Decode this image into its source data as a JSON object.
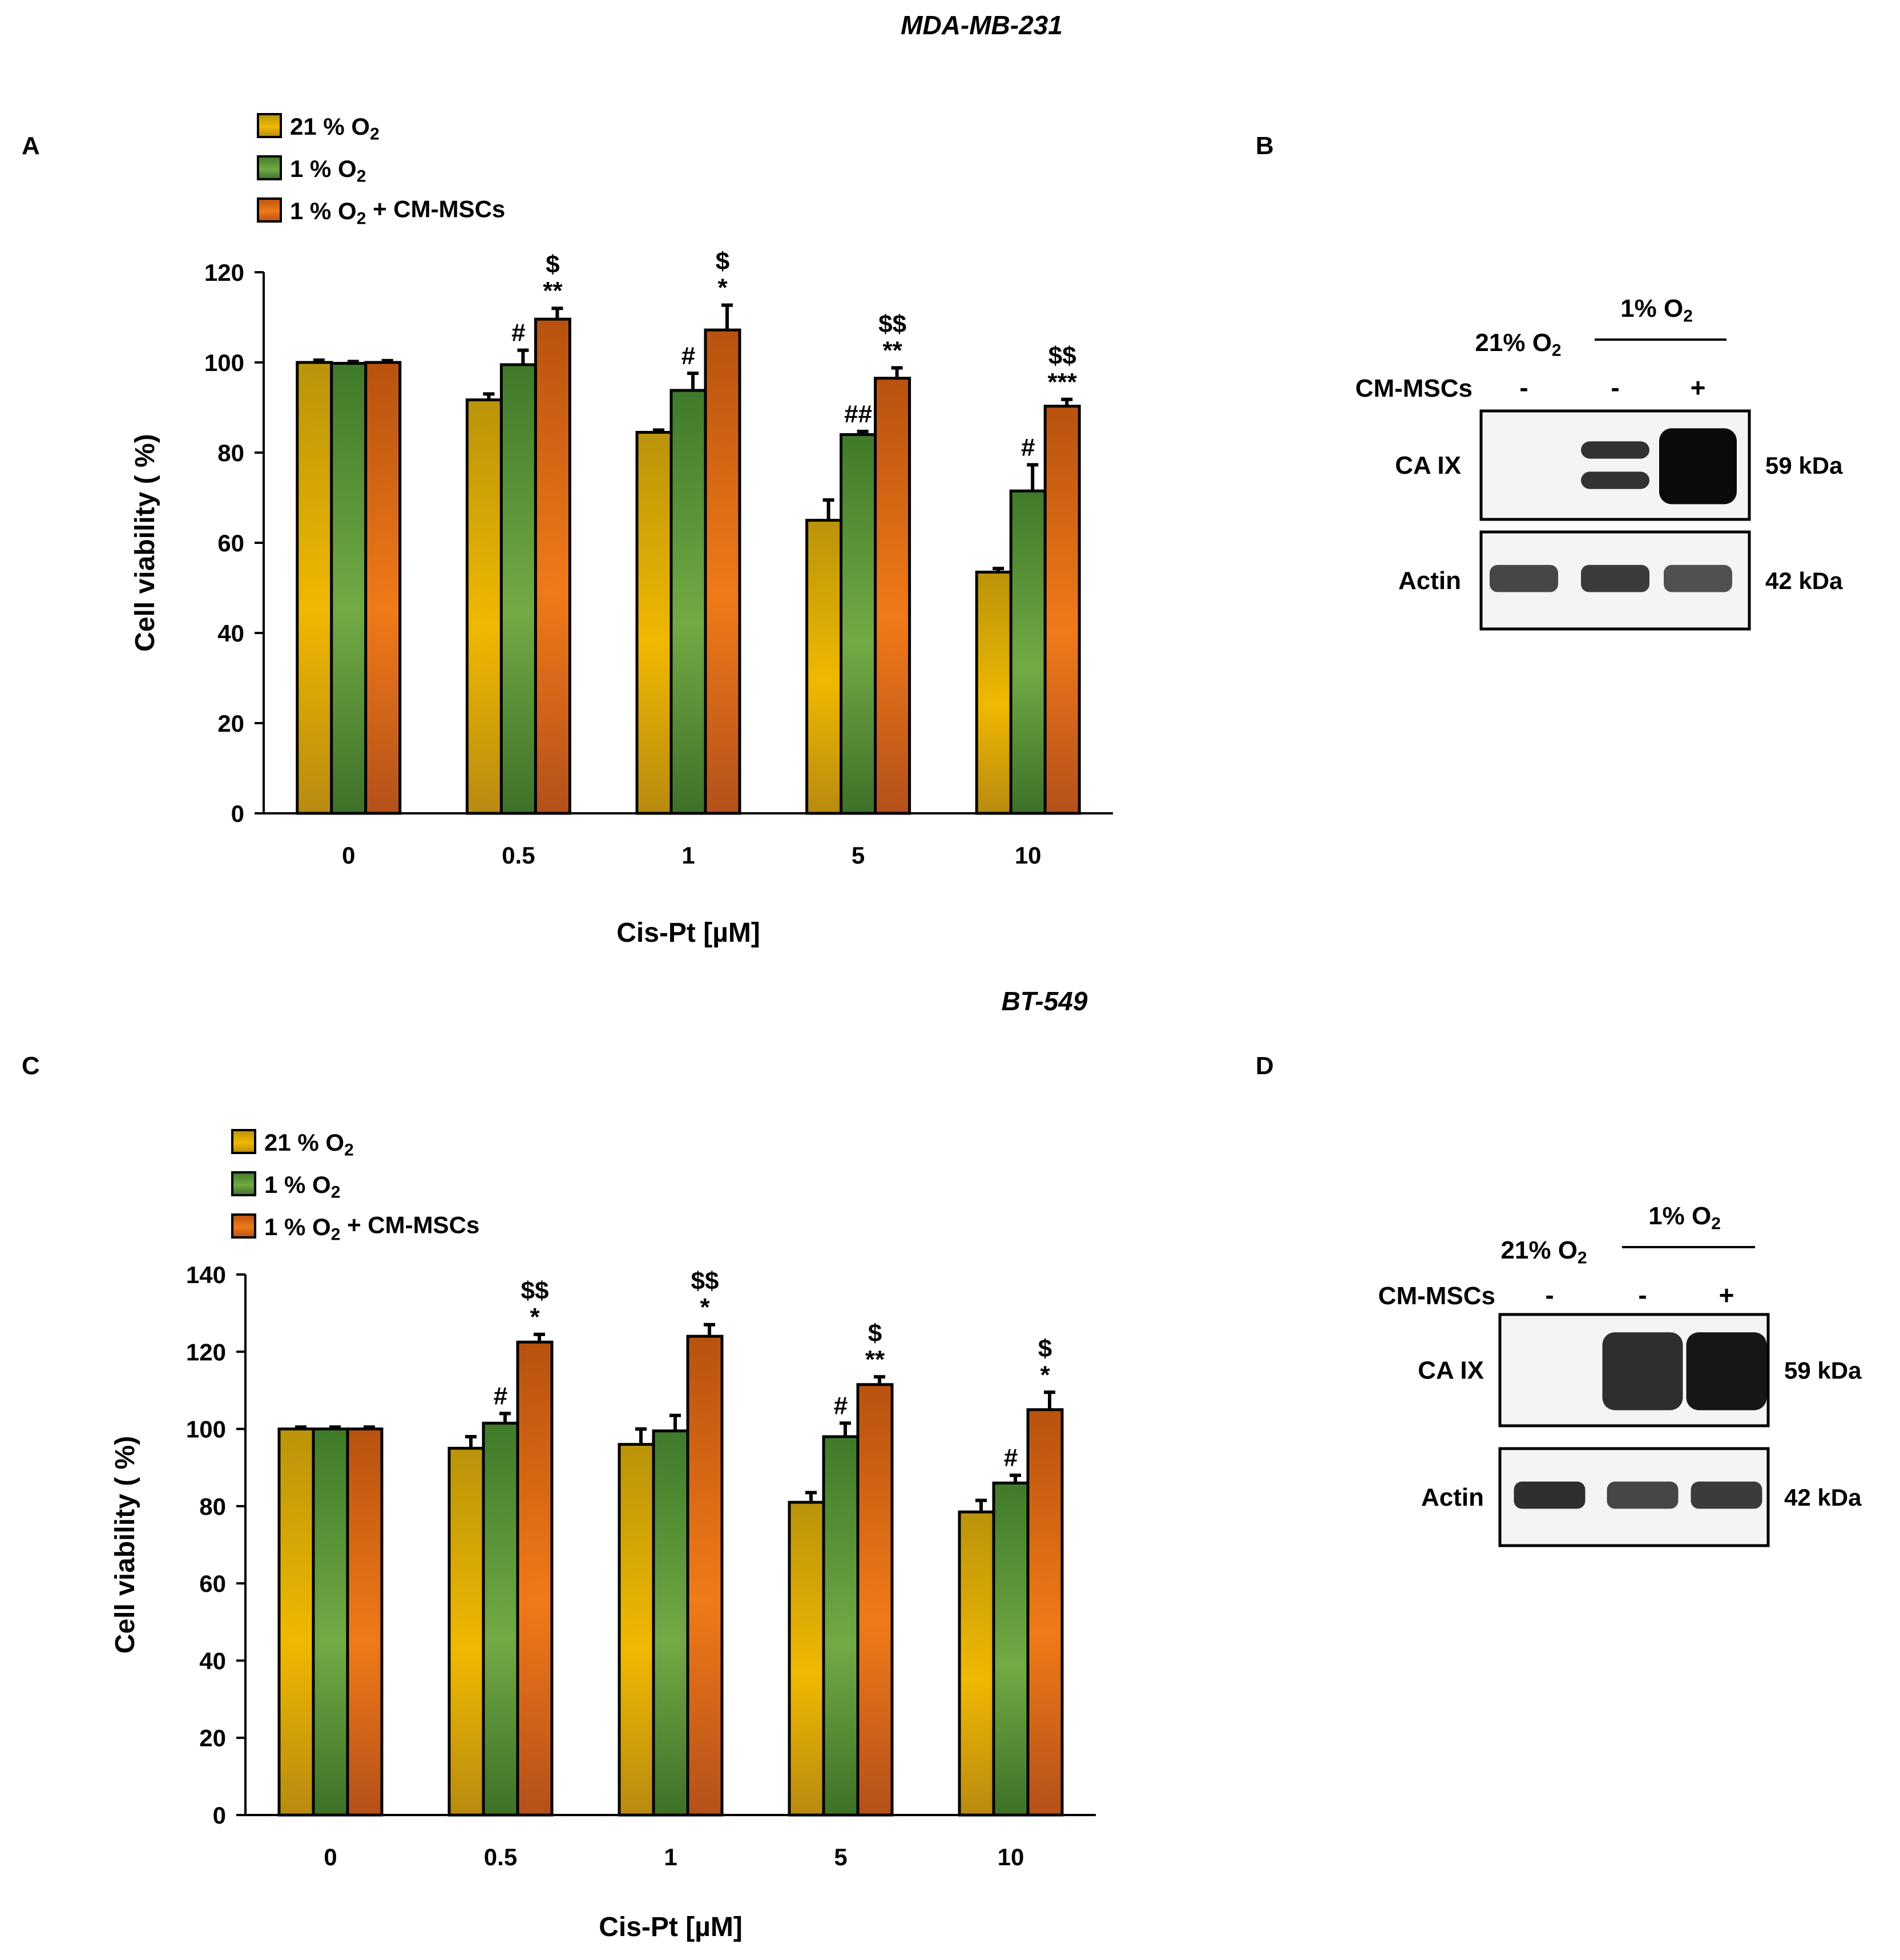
{
  "figure": {
    "titles": {
      "top": "MDA-MB-231",
      "middle": "BT-549"
    },
    "panel_labels": {
      "A": "A",
      "B": "B",
      "C": "C",
      "D": "D"
    }
  },
  "chart_data": [
    {
      "panel": "A",
      "type": "bar",
      "title": "MDA-MB-231",
      "xlabel": "Cis-Pt [µM]",
      "ylabel": "Cell viability ( %)",
      "ylim": [
        0,
        120
      ],
      "yticks": [
        0,
        20,
        40,
        60,
        80,
        100,
        120
      ],
      "categories": [
        "0",
        "0.5",
        "1",
        "5",
        "10"
      ],
      "legend_position": "top-left",
      "grid": false,
      "series": [
        {
          "name": "21 % O2",
          "color": "#D4A017",
          "values": [
            100,
            91.7,
            84.5,
            65,
            53.5
          ],
          "errors": [
            0.5,
            1.3,
            0.5,
            4.5,
            0.8
          ],
          "annotations": [
            "",
            "",
            "",
            "",
            ""
          ]
        },
        {
          "name": "1 % O2",
          "color": "#5E9A3E",
          "values": [
            99.8,
            99.5,
            93.8,
            84,
            71.5
          ],
          "errors": [
            0.4,
            3.2,
            3.8,
            0.7,
            5.8
          ],
          "annotations": [
            "",
            "#",
            "#",
            "##",
            "#"
          ]
        },
        {
          "name": "1 % O2 + CM-MSCs",
          "color": "#E2691E",
          "values": [
            100,
            109.6,
            107.2,
            96.5,
            90.3
          ],
          "errors": [
            0.4,
            2.4,
            5.5,
            2.3,
            1.5
          ],
          "annotations": [
            "",
            "$\n**",
            "$\n*",
            "$$\n**",
            "$$\n***"
          ]
        }
      ]
    },
    {
      "panel": "C",
      "type": "bar",
      "title": "BT-549",
      "xlabel": "Cis-Pt [µM]",
      "ylabel": "Cell viability ( %)",
      "ylim": [
        0,
        140
      ],
      "yticks": [
        0,
        20,
        40,
        60,
        80,
        100,
        120,
        140
      ],
      "categories": [
        "0",
        "0.5",
        "1",
        "5",
        "10"
      ],
      "legend_position": "top-left",
      "grid": false,
      "series": [
        {
          "name": "21 % O2",
          "color": "#D4A017",
          "values": [
            100,
            95,
            96,
            81,
            78.5
          ],
          "errors": [
            0.5,
            3,
            4,
            2.5,
            3
          ],
          "annotations": [
            "",
            "",
            "",
            "",
            ""
          ]
        },
        {
          "name": "1 % O2",
          "color": "#5E9A3E",
          "values": [
            100,
            101.5,
            99.5,
            98,
            86
          ],
          "errors": [
            0.5,
            2.5,
            4,
            3.5,
            2
          ],
          "annotations": [
            "",
            "#",
            "",
            "#",
            "#"
          ]
        },
        {
          "name": "1 % O2 + CM-MSCs",
          "color": "#E2691E",
          "values": [
            100,
            122.5,
            124,
            111.5,
            105
          ],
          "errors": [
            0.5,
            2,
            3,
            2,
            4.5
          ],
          "annotations": [
            "",
            "$$\n*",
            "$$\n*",
            "$\n**",
            "$\n*"
          ]
        }
      ]
    }
  ],
  "blots": [
    {
      "panel": "B",
      "group_label": "1% O2",
      "lane_labels": [
        "21% O2",
        "",
        ""
      ],
      "row_label": "CM-MSCs",
      "lane_signs": [
        "-",
        "-",
        "+"
      ],
      "bands": [
        {
          "label": "CA IX",
          "weight": "59 kDa",
          "intensity": [
            0,
            0.85,
            1.0
          ]
        },
        {
          "label": "Actin",
          "weight": "42 kDa",
          "intensity": [
            0.8,
            0.85,
            0.75
          ]
        }
      ]
    },
    {
      "panel": "D",
      "group_label": "1% O2",
      "lane_labels": [
        "21% O2",
        "",
        ""
      ],
      "row_label": "CM-MSCs",
      "lane_signs": [
        "-",
        "-",
        "+"
      ],
      "bands": [
        {
          "label": "CA IX",
          "weight": "59 kDa",
          "intensity": [
            0,
            0.85,
            0.95
          ]
        },
        {
          "label": "Actin",
          "weight": "42 kDa",
          "intensity": [
            0.9,
            0.8,
            0.85
          ]
        }
      ]
    }
  ]
}
